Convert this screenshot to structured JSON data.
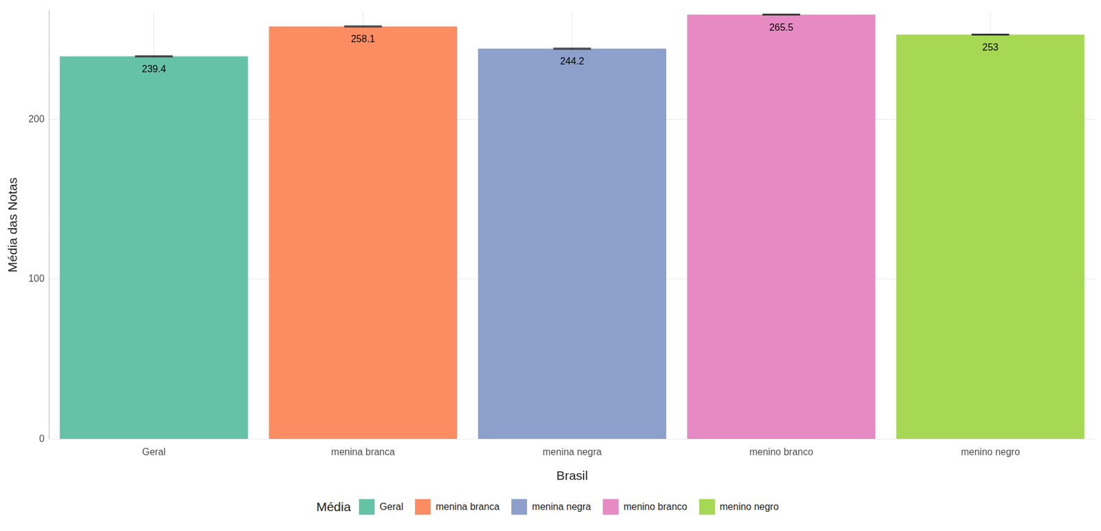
{
  "chart_data": {
    "type": "bar",
    "x_label": "Brasil",
    "y_label": "Média das Notas",
    "legend_title": "Média",
    "categories": [
      "Geral",
      "menina branca",
      "menina negra",
      "menino branco",
      "menino negro"
    ],
    "values": [
      239.4,
      258.1,
      244.2,
      265.5,
      253
    ],
    "errors": [
      0.3,
      0.3,
      0.3,
      0.3,
      0.3
    ],
    "colors": [
      "#66c2a5",
      "#fc8d62",
      "#8da0cb",
      "#e78ac3",
      "#a6d854"
    ],
    "ylim": [
      0,
      268
    ],
    "yticks": [
      0,
      100,
      200
    ],
    "grid": true,
    "legend": "bottom",
    "data_labels": true
  }
}
